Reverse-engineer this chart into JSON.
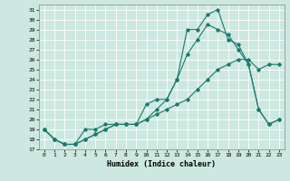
{
  "xlabel": "Humidex (Indice chaleur)",
  "background_color": "#cce8e0",
  "line_color": "#1a7a6e",
  "xlim": [
    -0.5,
    23.5
  ],
  "ylim": [
    17,
    31.5
  ],
  "xticks": [
    0,
    1,
    2,
    3,
    4,
    5,
    6,
    7,
    8,
    9,
    10,
    11,
    12,
    13,
    14,
    15,
    16,
    17,
    18,
    19,
    20,
    21,
    22,
    23
  ],
  "yticks": [
    17,
    18,
    19,
    20,
    21,
    22,
    23,
    24,
    25,
    26,
    27,
    28,
    29,
    30,
    31
  ],
  "line1_x": [
    0,
    1,
    2,
    3,
    4,
    5,
    6,
    7,
    8,
    9,
    10,
    11,
    12,
    13,
    14,
    15,
    16,
    17,
    18,
    19,
    20,
    21,
    22,
    23
  ],
  "line1_y": [
    19,
    18,
    17.5,
    17.5,
    18,
    18.5,
    19,
    19.5,
    19.5,
    19.5,
    20,
    20.5,
    21,
    21.5,
    22,
    23,
    24,
    25,
    25.5,
    26,
    26,
    25,
    25.5,
    25.5
  ],
  "line2_x": [
    0,
    1,
    2,
    3,
    4,
    5,
    6,
    7,
    8,
    9,
    10,
    11,
    12,
    13,
    14,
    15,
    16,
    17,
    18,
    19,
    20,
    21,
    22,
    23
  ],
  "line2_y": [
    19,
    18,
    17.5,
    17.5,
    19,
    19,
    19.5,
    19.5,
    19.5,
    19.5,
    21.5,
    22,
    22,
    24,
    29,
    29,
    30.5,
    31,
    28,
    27.5,
    25.5,
    21,
    19.5,
    20
  ],
  "line3_x": [
    0,
    1,
    2,
    3,
    4,
    5,
    6,
    7,
    8,
    9,
    10,
    11,
    12,
    13,
    14,
    15,
    16,
    17,
    18,
    19,
    20,
    21,
    22,
    23
  ],
  "line3_y": [
    19,
    18,
    17.5,
    17.5,
    18,
    18.5,
    19,
    19.5,
    19.5,
    19.5,
    20,
    21,
    22,
    24,
    26.5,
    28,
    29.5,
    29,
    28.5,
    27,
    25.5,
    21,
    19.5,
    20
  ]
}
